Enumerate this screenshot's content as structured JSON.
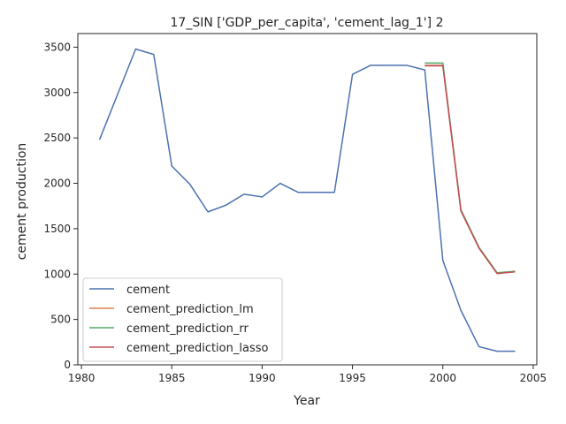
{
  "chart_data": {
    "type": "line",
    "title": "17_SIN ['GDP_per_capita', 'cement_lag_1'] 2",
    "xlabel": "Year",
    "ylabel": "cement production",
    "xlim": [
      1979.8,
      2005.2
    ],
    "ylim": [
      0,
      3650
    ],
    "xticks": [
      1980,
      1985,
      1990,
      1995,
      2000,
      2005
    ],
    "yticks": [
      0,
      500,
      1000,
      1500,
      2000,
      2500,
      3000,
      3500
    ],
    "grid": false,
    "legend_position": "lower-left",
    "series": [
      {
        "name": "cement",
        "color": "#4c72b0",
        "x": [
          1981,
          1982,
          1983,
          1984,
          1985,
          1986,
          1987,
          1988,
          1989,
          1990,
          1991,
          1992,
          1993,
          1994,
          1995,
          1996,
          1997,
          1998,
          1999,
          2000,
          2001,
          2002,
          2003,
          2004
        ],
        "y": [
          2480,
          2980,
          3480,
          3420,
          2190,
          1990,
          1685,
          1760,
          1880,
          1850,
          2000,
          1900,
          1900,
          1900,
          3200,
          3300,
          3300,
          3300,
          3250,
          1150,
          600,
          200,
          150,
          150
        ]
      },
      {
        "name": "cement_prediction_lm",
        "color": "#dd8452",
        "x": [
          1999,
          2000,
          2001,
          2002,
          2003,
          2004
        ],
        "y": [
          3300,
          3300,
          1700,
          1290,
          1010,
          1025
        ]
      },
      {
        "name": "cement_prediction_rr",
        "color": "#55a868",
        "x": [
          1999,
          2000,
          2001,
          2002,
          2003,
          2004
        ],
        "y": [
          3325,
          3325,
          1710,
          1295,
          1015,
          1030
        ]
      },
      {
        "name": "cement_prediction_lasso",
        "color": "#c44e52",
        "x": [
          1999,
          2000,
          2001,
          2002,
          2003,
          2004
        ],
        "y": [
          3295,
          3295,
          1695,
          1285,
          1005,
          1025
        ]
      }
    ]
  }
}
